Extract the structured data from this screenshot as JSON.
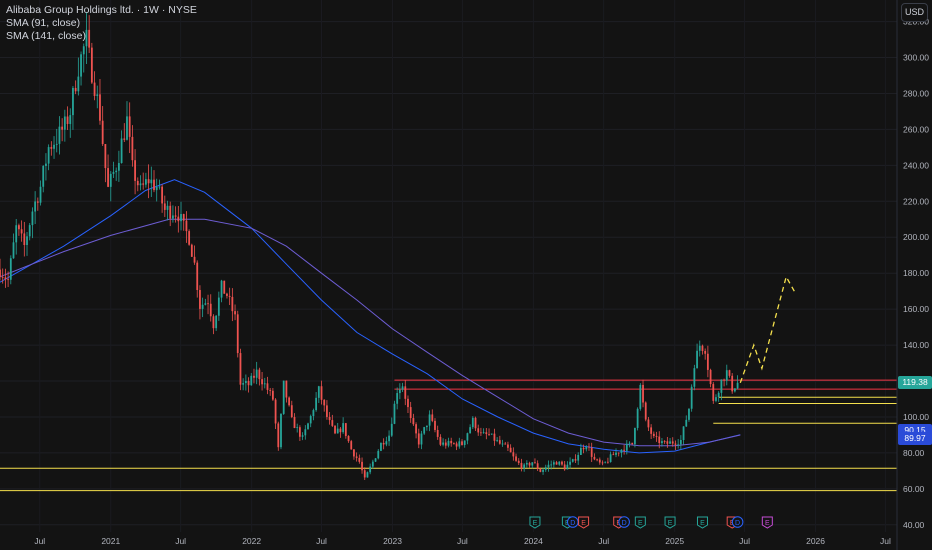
{
  "legend": {
    "title": "Alibaba Group Holdings ltd. · 1W · NYSE",
    "sma1": "SMA (91, close)",
    "sma2": "SMA (141, close)"
  },
  "currency": "USD",
  "price_tags": {
    "last": "119.38",
    "sma91": "90.15",
    "sma141": "89.97"
  },
  "colors": {
    "background": "#131313",
    "up": "#26a69a",
    "down": "#ef5350",
    "sma91": "#2962ff",
    "sma141": "#6d5dd3",
    "resistance": "#f23645",
    "support": "#f4e04d",
    "projection": "#f4e04d",
    "last_tag": "#26a69a",
    "sma_tag": "#2a4bd8"
  },
  "chart_data": {
    "type": "candlestick",
    "title": "Alibaba Group Holdings ltd. · 1W · NYSE",
    "y_ticks": [
      320,
      300,
      280,
      260,
      240,
      220,
      200,
      180,
      160,
      140,
      120,
      100,
      80,
      60,
      40
    ],
    "y_tick_labels": [
      "320.00",
      "300.00",
      "280.00",
      "260.00",
      "240.00",
      "220.00",
      "200.00",
      "180.00",
      "160.00",
      "140.00",
      "120.00",
      "100.00",
      "80.00",
      "60.00",
      "40.00"
    ],
    "ylim": [
      36,
      332
    ],
    "xlim": [
      "2020-03-20",
      "2026-07-31"
    ],
    "x_ticks": [
      {
        "date": "2020-07-01",
        "label": "Jul"
      },
      {
        "date": "2021-01-01",
        "label": "2021"
      },
      {
        "date": "2021-07-01",
        "label": "Jul"
      },
      {
        "date": "2022-01-01",
        "label": "2022"
      },
      {
        "date": "2022-07-01",
        "label": "Jul"
      },
      {
        "date": "2023-01-01",
        "label": "2023"
      },
      {
        "date": "2023-07-01",
        "label": "Jul"
      },
      {
        "date": "2024-01-01",
        "label": "2024"
      },
      {
        "date": "2024-07-01",
        "label": "Jul"
      },
      {
        "date": "2025-01-01",
        "label": "2025"
      },
      {
        "date": "2025-07-01",
        "label": "Jul"
      },
      {
        "date": "2026-01-01",
        "label": "2026"
      },
      {
        "date": "2026-07-01",
        "label": "Jul"
      }
    ],
    "price_path": [
      [
        "2020-03-20",
        182
      ],
      [
        "2020-04-10",
        176
      ],
      [
        "2020-05-01",
        205
      ],
      [
        "2020-05-22",
        195
      ],
      [
        "2020-06-12",
        215
      ],
      [
        "2020-07-03",
        228
      ],
      [
        "2020-07-24",
        250
      ],
      [
        "2020-08-14",
        255
      ],
      [
        "2020-09-04",
        262
      ],
      [
        "2020-09-18",
        270
      ],
      [
        "2020-10-09",
        295
      ],
      [
        "2020-10-23",
        305
      ],
      [
        "2020-10-30",
        310
      ],
      [
        "2020-11-06",
        300
      ],
      [
        "2020-11-20",
        285
      ],
      [
        "2020-12-04",
        268
      ],
      [
        "2020-12-24",
        226
      ],
      [
        "2021-01-15",
        240
      ],
      [
        "2021-02-12",
        265
      ],
      [
        "2021-02-26",
        238
      ],
      [
        "2021-03-19",
        226
      ],
      [
        "2021-04-09",
        232
      ],
      [
        "2021-04-30",
        228
      ],
      [
        "2021-05-21",
        215
      ],
      [
        "2021-06-11",
        215
      ],
      [
        "2021-06-25",
        213
      ],
      [
        "2021-07-09",
        205
      ],
      [
        "2021-07-23",
        200
      ],
      [
        "2021-08-06",
        185
      ],
      [
        "2021-08-20",
        162
      ],
      [
        "2021-09-10",
        165
      ],
      [
        "2021-09-24",
        152
      ],
      [
        "2021-10-15",
        172
      ],
      [
        "2021-10-29",
        168
      ],
      [
        "2021-11-19",
        155
      ],
      [
        "2021-12-03",
        118
      ],
      [
        "2021-12-24",
        118
      ],
      [
        "2022-01-14",
        125
      ],
      [
        "2022-02-04",
        118
      ],
      [
        "2022-02-25",
        110
      ],
      [
        "2022-03-11",
        82
      ],
      [
        "2022-03-25",
        118
      ],
      [
        "2022-04-15",
        98
      ],
      [
        "2022-05-13",
        88
      ],
      [
        "2022-06-03",
        100
      ],
      [
        "2022-06-24",
        115
      ],
      [
        "2022-07-15",
        100
      ],
      [
        "2022-08-05",
        90
      ],
      [
        "2022-08-26",
        95
      ],
      [
        "2022-09-16",
        82
      ],
      [
        "2022-10-07",
        75
      ],
      [
        "2022-10-21",
        65
      ],
      [
        "2022-11-11",
        75
      ],
      [
        "2022-12-02",
        85
      ],
      [
        "2022-12-23",
        90
      ],
      [
        "2023-01-13",
        115
      ],
      [
        "2023-01-27",
        118
      ],
      [
        "2023-02-17",
        98
      ],
      [
        "2023-03-10",
        86
      ],
      [
        "2023-04-07",
        100
      ],
      [
        "2023-05-05",
        85
      ],
      [
        "2023-06-02",
        85
      ],
      [
        "2023-06-30",
        85
      ],
      [
        "2023-07-28",
        98
      ],
      [
        "2023-08-18",
        90
      ],
      [
        "2023-09-08",
        90
      ],
      [
        "2023-10-06",
        85
      ],
      [
        "2023-10-27",
        82
      ],
      [
        "2023-11-17",
        75
      ],
      [
        "2023-12-08",
        72
      ],
      [
        "2023-12-29",
        75
      ],
      [
        "2024-01-19",
        70
      ],
      [
        "2024-02-09",
        73
      ],
      [
        "2024-03-01",
        75
      ],
      [
        "2024-03-22",
        72
      ],
      [
        "2024-04-12",
        75
      ],
      [
        "2024-05-03",
        82
      ],
      [
        "2024-05-17",
        85
      ],
      [
        "2024-06-07",
        76
      ],
      [
        "2024-06-28",
        73
      ],
      [
        "2024-07-26",
        79
      ],
      [
        "2024-08-23",
        83
      ],
      [
        "2024-09-13",
        85
      ],
      [
        "2024-10-04",
        117
      ],
      [
        "2024-10-18",
        97
      ],
      [
        "2024-11-08",
        88
      ],
      [
        "2024-12-06",
        85
      ],
      [
        "2024-12-27",
        86
      ],
      [
        "2025-01-17",
        87
      ],
      [
        "2025-02-07",
        105
      ],
      [
        "2025-02-21",
        130
      ],
      [
        "2025-03-07",
        140
      ],
      [
        "2025-03-21",
        138
      ],
      [
        "2025-04-11",
        108
      ],
      [
        "2025-05-02",
        120
      ],
      [
        "2025-05-16",
        125
      ],
      [
        "2025-05-30",
        116
      ],
      [
        "2025-06-13",
        119
      ]
    ],
    "series": [
      {
        "name": "SMA (91, close)",
        "points": [
          [
            "2020-03-20",
            175
          ],
          [
            "2020-09-01",
            195
          ],
          [
            "2021-01-01",
            212
          ],
          [
            "2021-04-01",
            226
          ],
          [
            "2021-06-15",
            232
          ],
          [
            "2021-09-01",
            225
          ],
          [
            "2022-01-01",
            205
          ],
          [
            "2022-04-01",
            185
          ],
          [
            "2022-07-01",
            165
          ],
          [
            "2022-10-01",
            147
          ],
          [
            "2023-01-01",
            135
          ],
          [
            "2023-04-01",
            124
          ],
          [
            "2023-07-01",
            110
          ],
          [
            "2023-10-01",
            100
          ],
          [
            "2024-01-01",
            91
          ],
          [
            "2024-04-01",
            85
          ],
          [
            "2024-07-01",
            82
          ],
          [
            "2024-10-01",
            80
          ],
          [
            "2025-01-01",
            81
          ],
          [
            "2025-04-01",
            86
          ],
          [
            "2025-06-20",
            90.15
          ]
        ]
      },
      {
        "name": "SMA (141, close)",
        "points": [
          [
            "2020-03-20",
            178
          ],
          [
            "2020-09-01",
            192
          ],
          [
            "2021-01-01",
            201
          ],
          [
            "2021-06-01",
            210
          ],
          [
            "2021-09-01",
            210
          ],
          [
            "2022-01-01",
            205
          ],
          [
            "2022-04-01",
            195
          ],
          [
            "2022-07-01",
            180
          ],
          [
            "2022-10-01",
            165
          ],
          [
            "2023-01-01",
            149
          ],
          [
            "2023-04-01",
            136
          ],
          [
            "2023-07-01",
            123
          ],
          [
            "2023-10-01",
            111
          ],
          [
            "2024-01-01",
            99
          ],
          [
            "2024-04-01",
            91
          ],
          [
            "2024-07-01",
            86
          ],
          [
            "2024-10-01",
            84
          ],
          [
            "2025-01-01",
            84
          ],
          [
            "2025-04-01",
            86
          ],
          [
            "2025-06-20",
            89.97
          ]
        ]
      }
    ],
    "resistance_lines": [
      {
        "value": 120.5,
        "from": "2023-01-06",
        "to": "2026-07-31"
      },
      {
        "value": 115.5,
        "from": "2023-01-06",
        "to": "2026-07-31"
      }
    ],
    "support_lines": [
      {
        "value": 111,
        "from": "2025-04-25",
        "to": "2026-07-31"
      },
      {
        "value": 107.5,
        "from": "2025-04-25",
        "to": "2026-07-31"
      },
      {
        "value": 96.5,
        "from": "2025-04-11",
        "to": "2026-07-31"
      },
      {
        "value": 71.5,
        "from": "2020-03-20",
        "to": "2026-07-31"
      },
      {
        "value": 59,
        "from": "2020-03-20",
        "to": "2026-07-31"
      }
    ],
    "projection": [
      [
        "2025-06-20",
        119
      ],
      [
        "2025-07-25",
        140
      ],
      [
        "2025-08-15",
        127
      ],
      [
        "2025-10-17",
        178
      ],
      [
        "2025-11-07",
        170
      ]
    ],
    "events": [
      {
        "date": "2024-01-05",
        "label": "E",
        "kind": "earn_up"
      },
      {
        "date": "2024-03-29",
        "label": "E",
        "kind": "earn_up"
      },
      {
        "date": "2024-04-12",
        "label": "D",
        "kind": "dividend"
      },
      {
        "date": "2024-05-10",
        "label": "E",
        "kind": "earn_down"
      },
      {
        "date": "2024-08-09",
        "label": "E",
        "kind": "earn_down"
      },
      {
        "date": "2024-08-23",
        "label": "D",
        "kind": "dividend"
      },
      {
        "date": "2024-10-04",
        "label": "E",
        "kind": "earn_up"
      },
      {
        "date": "2024-12-20",
        "label": "E",
        "kind": "earn_up"
      },
      {
        "date": "2025-03-14",
        "label": "E",
        "kind": "earn_up"
      },
      {
        "date": "2025-05-30",
        "label": "E",
        "kind": "earn_down"
      },
      {
        "date": "2025-06-13",
        "label": "D",
        "kind": "dividend"
      },
      {
        "date": "2025-08-29",
        "label": "E",
        "kind": "earn_future"
      }
    ]
  }
}
